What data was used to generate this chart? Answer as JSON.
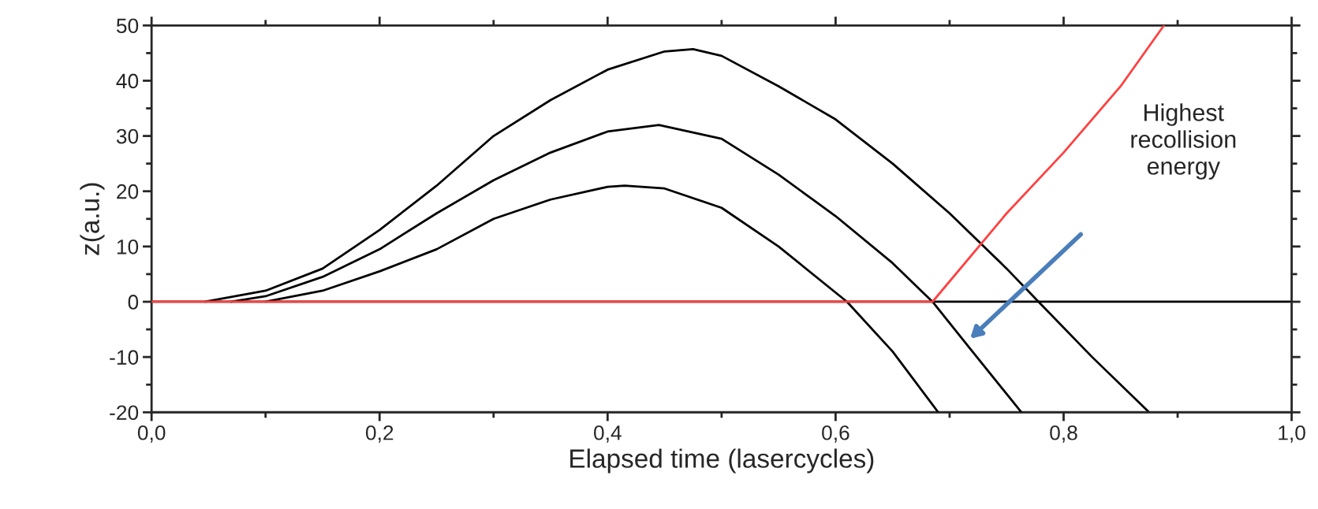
{
  "chart_data": {
    "type": "line",
    "xlabel": "Elapsed time (lasercycles)",
    "ylabel": "z(a.u.)",
    "xlim": [
      0,
      1
    ],
    "ylim": [
      -20,
      50
    ],
    "xticks": [
      {
        "value": 0,
        "label": "0,0"
      },
      {
        "value": 0.2,
        "label": "0,2"
      },
      {
        "value": 0.4,
        "label": "0,4"
      },
      {
        "value": 0.6,
        "label": "0,6"
      },
      {
        "value": 0.8,
        "label": "0,8"
      },
      {
        "value": 1,
        "label": "1,0"
      }
    ],
    "yticks": [
      -20,
      -10,
      0,
      10,
      20,
      30,
      40,
      50
    ],
    "grid": false,
    "legend": false,
    "marker": "none",
    "line_style": "solid",
    "ref_lines": [
      {
        "axis": "y",
        "value": 0,
        "color": "#000000"
      }
    ],
    "series": [
      {
        "color": "#000000",
        "x": [
          0.047,
          0.1,
          0.15,
          0.2,
          0.25,
          0.3,
          0.35,
          0.4,
          0.45,
          0.475,
          0.5,
          0.55,
          0.6,
          0.65,
          0.7,
          0.75,
          0.778,
          0.825,
          0.875
        ],
        "values": [
          0,
          2,
          6,
          13,
          21,
          30,
          36.5,
          42,
          45.3,
          45.7,
          44.5,
          39,
          33,
          25,
          16,
          6,
          0,
          -10,
          -20
        ]
      },
      {
        "color": "#000000",
        "x": [
          0.07,
          0.1,
          0.15,
          0.2,
          0.25,
          0.3,
          0.35,
          0.4,
          0.445,
          0.5,
          0.55,
          0.6,
          0.65,
          0.685,
          0.72,
          0.763
        ],
        "values": [
          0,
          1,
          4.5,
          9.5,
          16,
          22,
          27,
          30.8,
          32,
          29.5,
          23,
          15.5,
          7,
          0,
          -9,
          -20
        ]
      },
      {
        "color": "#000000",
        "x": [
          0.1,
          0.15,
          0.2,
          0.25,
          0.3,
          0.35,
          0.4,
          0.415,
          0.45,
          0.5,
          0.55,
          0.61,
          0.65,
          0.69
        ],
        "values": [
          0,
          2,
          5.5,
          9.5,
          15,
          18.5,
          20.8,
          21,
          20.5,
          17,
          10,
          0,
          -9,
          -20
        ]
      },
      {
        "color": "#ff4040",
        "x": [
          0,
          0.685,
          0.75,
          0.8,
          0.85,
          0.888
        ],
        "values": [
          0,
          0,
          16,
          27,
          39,
          50
        ]
      }
    ],
    "annotations": [
      "Highest\nrecollision\nenergy"
    ]
  }
}
